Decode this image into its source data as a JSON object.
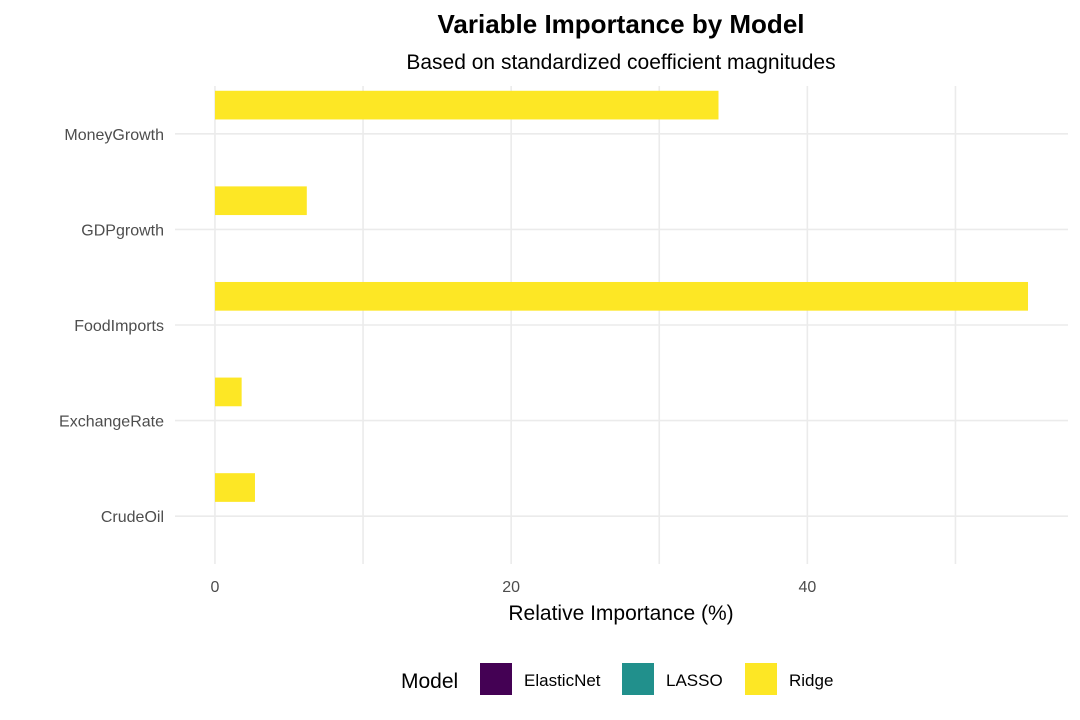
{
  "chart_data": {
    "type": "bar",
    "orientation": "horizontal",
    "title": "Variable Importance by Model",
    "subtitle": "Based on standardized coefficient magnitudes",
    "xlabel": "Relative Importance (%)",
    "ylabel": "",
    "categories": [
      "CrudeOil",
      "ExchangeRate",
      "FoodImports",
      "GDPgrowth",
      "MoneyGrowth"
    ],
    "series": [
      {
        "name": "ElasticNet",
        "color": "#440154",
        "values": [
          0,
          0,
          0,
          0,
          0
        ]
      },
      {
        "name": "LASSO",
        "color": "#21908C",
        "values": [
          0,
          0,
          0,
          0,
          0
        ]
      },
      {
        "name": "Ridge",
        "color": "#FDE725",
        "values": [
          2.7,
          1.8,
          54.9,
          6.2,
          34.0
        ]
      }
    ],
    "xlim": [
      -2.7,
      57.6
    ],
    "x_ticks": [
      0,
      20,
      40
    ],
    "grid": true,
    "legend": {
      "title": "Model",
      "position": "bottom"
    }
  }
}
